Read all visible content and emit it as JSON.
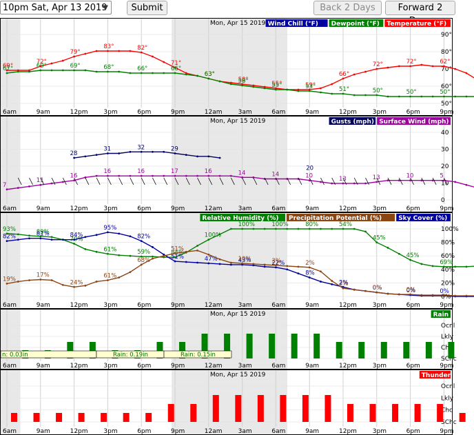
{
  "controls": {
    "time_select": "10pm Sat, Apr 13 2019",
    "submit_label": "Submit",
    "back_label": "Back 2 Days",
    "forward_label": "Forward 2 Days"
  },
  "date_label": "Mon, Apr 15 2019",
  "x_labels": [
    "6am",
    "9am",
    "12pm",
    "3pm",
    "6pm",
    "9pm",
    "12am",
    "3am",
    "6am",
    "9am",
    "12pm",
    "3pm",
    "6pm",
    "9pm"
  ],
  "colors": {
    "windchill": "#0000a0",
    "dewpoint": "#008000",
    "temperature": "#ff0000",
    "gusts": "#000060",
    "wind": "#a000a0",
    "humidity": "#008000",
    "precip": "#8b4513",
    "sky": "#0000a0",
    "rain": "#008000",
    "thunder": "#ff0000",
    "shade": "#e8e8e8"
  },
  "chart_data": [
    {
      "type": "line",
      "name": "temperature-panel",
      "legend": [
        "Wind Chill (°F)",
        "Dewpoint (°F)",
        "Temperature (°F)"
      ],
      "y_ticks": [
        "90°",
        "80°",
        "70°",
        "60°",
        "50°"
      ],
      "ylim": [
        45,
        95
      ],
      "series": [
        {
          "name": "Temperature (°F)",
          "key": "temperature",
          "values": [
            69,
            69,
            69,
            72,
            74,
            76,
            79,
            81,
            83,
            83,
            83,
            83,
            82,
            79,
            75,
            71,
            67,
            65,
            63,
            61,
            60,
            59,
            58,
            57,
            56,
            55,
            55,
            55,
            56,
            59,
            63,
            66,
            68,
            70,
            71,
            72,
            72,
            73,
            72,
            72,
            70,
            67,
            62
          ],
          "labels": {
            "0": "69°",
            "3": "72°",
            "6": "79°",
            "9": "83°",
            "12": "82°",
            "15": "71°",
            "18": "63°",
            "21": "58°",
            "24": "55°",
            "27": "59°",
            "30": "66°",
            "33": "72°",
            "36": "72°",
            "39": "62°"
          }
        },
        {
          "name": "Dewpoint (°F)",
          "key": "dewpoint",
          "values": [
            67,
            68,
            68,
            69,
            69,
            69,
            69,
            69,
            68,
            68,
            68,
            67,
            67,
            67,
            67,
            67,
            66,
            65,
            63,
            61,
            59,
            58,
            57,
            56,
            55,
            55,
            54,
            54,
            53,
            52,
            52,
            51,
            51,
            51,
            50,
            50,
            50,
            50,
            50,
            50,
            50,
            50,
            50
          ],
          "labels": {
            "0": "67°",
            "3": "69°",
            "6": "69°",
            "9": "68°",
            "12": "66°",
            "15": "66°",
            "18": "63°",
            "21": "58°",
            "24": "55°",
            "27": "53°",
            "30": "51°",
            "33": "50°",
            "36": "50°",
            "39": "50°"
          }
        }
      ]
    },
    {
      "type": "line",
      "name": "wind-panel",
      "legend": [
        "Gusts (mph)",
        "Surface Wind (mph)"
      ],
      "y_ticks": [
        "40",
        "30",
        "20",
        "10",
        "0"
      ],
      "ylim": [
        0,
        45
      ],
      "series": [
        {
          "name": "Surface Wind (mph)",
          "key": "wind",
          "values": [
            7,
            8,
            9,
            10,
            11,
            12,
            13,
            15,
            16,
            16,
            16,
            16,
            16,
            16,
            16,
            16,
            16,
            16,
            16,
            16,
            16,
            15,
            15,
            14,
            14,
            14,
            14,
            13,
            12,
            11,
            11,
            11,
            11,
            12,
            13,
            13,
            13,
            13,
            13,
            13,
            12,
            10,
            8,
            7,
            6,
            5
          ],
          "labels": {
            "0": "7",
            "3": "11",
            "6": "16",
            "9": "16",
            "12": "16",
            "15": "17",
            "18": "16",
            "21": "14",
            "24": "14",
            "27": "10",
            "30": "13",
            "33": "13",
            "36": "10",
            "39": "5"
          }
        },
        {
          "name": "Gusts (mph)",
          "key": "gusts",
          "values": [
            28,
            29,
            30,
            31,
            31,
            32,
            32,
            32,
            32,
            31,
            30,
            29,
            29,
            28
          ],
          "start": 6,
          "labels": {
            "0": "28",
            "3": "31",
            "6": "32",
            "9": "29"
          },
          "extra": {
            "label": "20",
            "at": 27,
            "value": 20
          }
        }
      ]
    },
    {
      "type": "line",
      "name": "humidity-panel",
      "legend": [
        "Relative Humidity (%)",
        "Precipitation Potential (%)",
        "Sky Cover (%)"
      ],
      "y_ticks": [
        "100%",
        "80%",
        "60%",
        "40%",
        "20%",
        "0%"
      ],
      "ylim": [
        0,
        100
      ],
      "series": [
        {
          "name": "Relative Humidity (%)",
          "key": "humidity",
          "values": [
            93,
            92,
            90,
            89,
            88,
            84,
            78,
            70,
            66,
            63,
            61,
            60,
            59,
            59,
            58,
            58,
            65,
            75,
            84,
            92,
            100,
            100,
            100,
            100,
            100,
            100,
            100,
            100,
            100,
            100,
            100,
            100,
            96,
            80,
            72,
            63,
            54,
            48,
            45,
            44,
            44,
            44,
            45,
            48,
            53,
            60,
            69
          ],
          "labels": {
            "0": "93%",
            "3": "89%",
            "6": "70%",
            "9": "61%",
            "12": "59%",
            "15": "84%",
            "18": "100%",
            "21": "100%",
            "24": "100%",
            "27": "80%",
            "30": "54%",
            "33": "45%",
            "36": "45%",
            "39": "69%"
          }
        },
        {
          "name": "Sky Cover (%)",
          "key": "sky",
          "values": [
            82,
            84,
            86,
            86,
            84,
            84,
            84,
            88,
            91,
            95,
            93,
            89,
            82,
            73,
            62,
            52,
            51,
            50,
            49,
            48,
            47,
            47,
            46,
            44,
            43,
            40,
            34,
            28,
            22,
            18,
            14,
            10,
            8,
            6,
            4,
            3,
            2,
            1,
            1,
            1,
            0,
            0,
            0,
            0,
            0,
            0,
            0
          ],
          "labels": {
            "0": "82%",
            "3": "81%",
            "6": "84%",
            "9": "95%",
            "12": "82%",
            "15": "51%",
            "18": "47%",
            "21": "43%",
            "24": "22%",
            "27": "8%",
            "30": "2%",
            "33": "0%",
            "36": "0%",
            "39": "0%"
          }
        },
        {
          "name": "Precipitation Potential (%)",
          "key": "precip",
          "values": [
            19,
            22,
            24,
            25,
            24,
            17,
            14,
            16,
            22,
            24,
            28,
            36,
            47,
            56,
            60,
            64,
            66,
            68,
            62,
            55,
            50,
            49,
            48,
            47,
            46,
            45,
            44,
            43,
            37,
            23,
            12,
            10,
            8,
            6,
            4,
            3,
            3,
            2,
            2,
            2,
            1,
            1,
            1,
            1,
            0,
            0,
            0
          ],
          "labels": {
            "0": "19%",
            "3": "17%",
            "6": "24%",
            "9": "61%",
            "12": "68%",
            "15": "51%",
            "21": "10%",
            "24": "3%",
            "27": "2%",
            "30": "2%",
            "33": "0%",
            "36": "0%"
          }
        }
      ]
    },
    {
      "type": "bar",
      "name": "rain-panel",
      "legend": [
        "Rain"
      ],
      "y_ticks": [
        "Ocnl",
        "Lkly",
        "Chc",
        "SChc"
      ],
      "values": [
        1,
        1,
        2,
        2,
        1,
        1,
        2,
        2,
        3,
        3,
        3,
        3,
        3,
        3,
        2,
        2,
        2,
        2,
        2,
        2
      ],
      "start": 1,
      "amounts": [
        "n: 0.03in",
        "Rain: 0.19in",
        "Rain: 0.15in"
      ]
    },
    {
      "type": "bar",
      "name": "thunder-panel",
      "legend": [
        "Thunder"
      ],
      "y_ticks": [
        "Ocnl",
        "Lkly",
        "Chc",
        "SChc"
      ],
      "values": [
        1,
        1,
        1,
        1,
        1,
        1,
        1,
        2,
        2,
        3,
        3,
        3,
        3,
        3,
        3,
        2,
        2,
        2,
        2,
        2,
        1
      ],
      "start": 0
    }
  ]
}
